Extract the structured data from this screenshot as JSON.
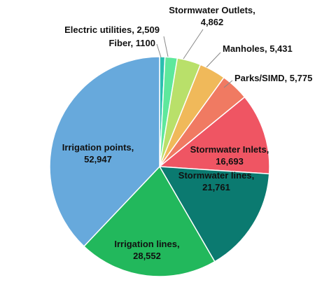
{
  "chart_data": {
    "type": "pie",
    "categories": [
      "Fiber",
      "Electric utilities",
      "Stormwater Outlets",
      "Manholes",
      "Parks/SIMD",
      "Stormwater Inlets",
      "Stormwater lines",
      "Irrigation lines",
      "Irrigation points"
    ],
    "values": [
      1100,
      2509,
      4862,
      5431,
      5775,
      16693,
      21761,
      28552,
      52947
    ],
    "value_labels": [
      "1100",
      "2,509",
      "4,862",
      "5,431",
      "5,775",
      "16,693",
      "21,761",
      "28,552",
      "52,947"
    ],
    "label_separator": ",",
    "colors": [
      "#2bbfb0",
      "#5ee89c",
      "#b9e06a",
      "#f0b95a",
      "#f07a62",
      "#ef5563",
      "#0b7a70",
      "#22b85c",
      "#67a9dc"
    ]
  }
}
